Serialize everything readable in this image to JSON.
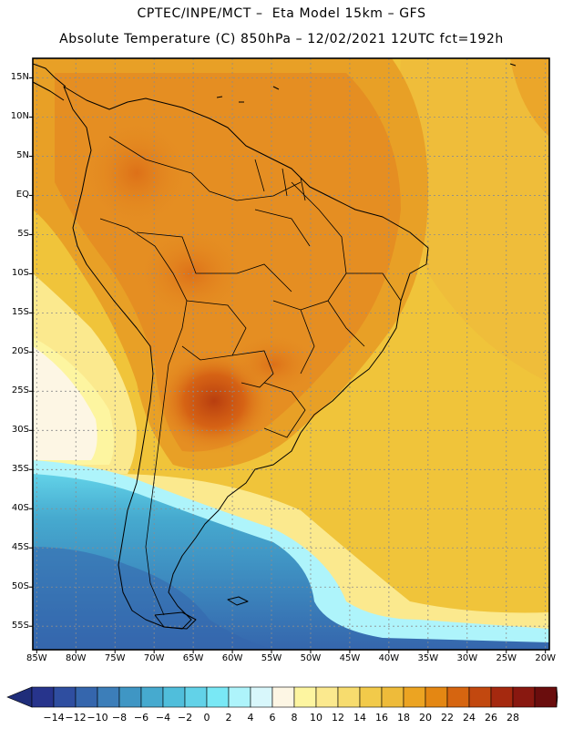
{
  "header": {
    "line1": "CPTEC/INPE/MCT –  Eta Model 15km – GFS",
    "line2": "Absolute Temperature (C) 850hPa – 12/02/2021 12UTC fct=192h"
  },
  "map": {
    "lat_ticks": [
      "15N",
      "10N",
      "5N",
      "EQ",
      "5S",
      "10S",
      "15S",
      "20S",
      "25S",
      "30S",
      "35S",
      "40S",
      "45S",
      "50S",
      "55S"
    ],
    "lat_values": [
      15,
      10,
      5,
      0,
      -5,
      -10,
      -15,
      -20,
      -25,
      -30,
      -35,
      -40,
      -45,
      -50,
      -55
    ],
    "lon_ticks": [
      "85W",
      "80W",
      "75W",
      "70W",
      "65W",
      "60W",
      "55W",
      "50W",
      "45W",
      "40W",
      "35W",
      "30W",
      "25W",
      "20W"
    ],
    "lon_values": [
      -85,
      -80,
      -75,
      -70,
      -65,
      -60,
      -55,
      -50,
      -45,
      -40,
      -35,
      -30,
      -25,
      -20
    ],
    "extent": {
      "lon_min": -85.5,
      "lon_max": -19.5,
      "lat_min": -58,
      "lat_max": 17.5
    }
  },
  "colorbar": {
    "labels": [
      "-14",
      "-12",
      "-10",
      "-8",
      "-6",
      "-4",
      "-2",
      "0",
      "2",
      "4",
      "6",
      "8",
      "10",
      "12",
      "14",
      "16",
      "18",
      "20",
      "22",
      "24",
      "26",
      "28"
    ],
    "colors": [
      "#27348c",
      "#2f4ea0",
      "#3566ad",
      "#3c7eb9",
      "#3f96c4",
      "#46aacf",
      "#50bedb",
      "#62d2e8",
      "#79e8f5",
      "#aef4fb",
      "#d8f7fb",
      "#fdf6e4",
      "#fdf5a0",
      "#fbe98e",
      "#f7dc6e",
      "#f2ca4a",
      "#eebb3a",
      "#eca422",
      "#e48713",
      "#d66510",
      "#c2480f",
      "#a5290f",
      "#891810",
      "#6a0d0d"
    ],
    "under_color": "#1f2d7a",
    "over_color": "#6b0012"
  },
  "colors": {
    "ocean_warm": "#f0c43a",
    "land_hot": "#e58e22",
    "border": "#000000",
    "grid": "#8c8c8c"
  }
}
